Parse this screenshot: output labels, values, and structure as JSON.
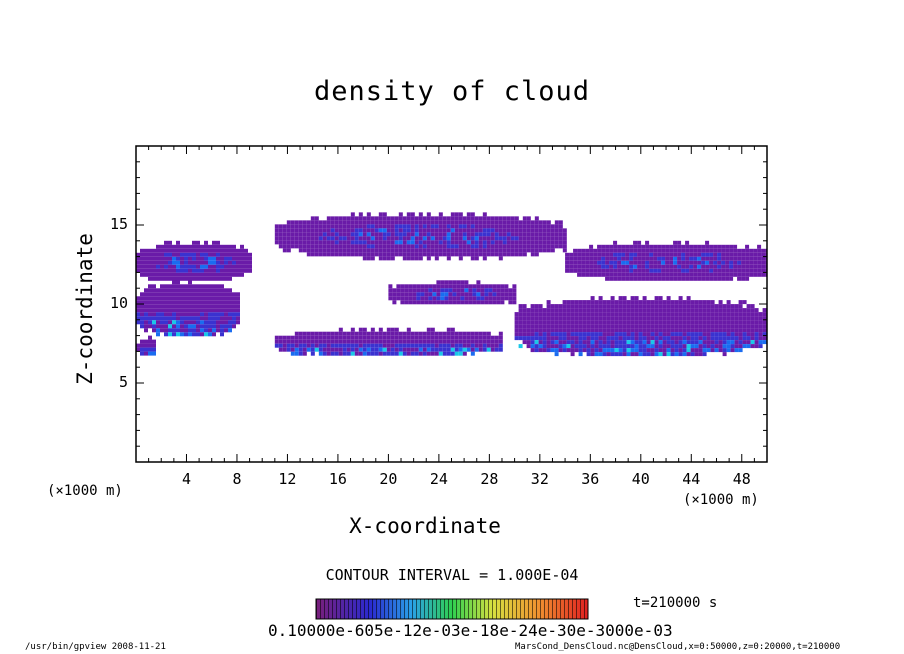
{
  "chart_data": {
    "type": "heatmap",
    "title": "density of cloud",
    "xlabel": "X-coordinate",
    "ylabel": "Z-coordinate",
    "x_unit_left": "(×1000 m)",
    "x_unit_right": "(×1000 m)",
    "xlim": [
      0,
      50
    ],
    "ylim": [
      0,
      20
    ],
    "x_ticks": [
      "4",
      "8",
      "12",
      "16",
      "20",
      "24",
      "28",
      "32",
      "36",
      "40",
      "44",
      "48"
    ],
    "y_ticks": [
      "5",
      "10",
      "15"
    ],
    "contour_interval": "CONTOUR INTERVAL = 1.000E-04",
    "time_label": "t=210000 s",
    "colorbar_labels": "0.10000e-605e-12e-03e-18e-24e-30e-3000e-03",
    "colors": {
      "cloud_main": "#6a1ba8",
      "cloud_dense": "#3a32d0",
      "cloud_core": "#1a6cf0",
      "cloud_peak": "#19c8e8"
    },
    "cloud_regions": [
      {
        "name": "left-upper",
        "x": [
          0,
          9
        ],
        "z": [
          11.5,
          14
        ]
      },
      {
        "name": "left-mid",
        "x": [
          0,
          8
        ],
        "z": [
          8,
          11.5
        ]
      },
      {
        "name": "left-base",
        "x": [
          0,
          1.5
        ],
        "z": [
          6.8,
          8
        ]
      },
      {
        "name": "upper-band",
        "x": [
          11,
          34
        ],
        "z": [
          13,
          15.8
        ]
      },
      {
        "name": "right-upper",
        "x": [
          34,
          50
        ],
        "z": [
          11.5,
          14
        ]
      },
      {
        "name": "mid-band",
        "x": [
          20,
          30
        ],
        "z": [
          10,
          11.5
        ]
      },
      {
        "name": "lower-band",
        "x": [
          11,
          29
        ],
        "z": [
          6.8,
          8.5
        ]
      },
      {
        "name": "right-lower",
        "x": [
          30,
          50
        ],
        "z": [
          6.8,
          10.5
        ]
      }
    ]
  },
  "labels": {
    "contour_interval": "CONTOUR INTERVAL = 1.000E-04",
    "time": "t=210000 s",
    "colorbar": "0.10000e-605e-12e-03e-18e-24e-30e-3000e-03"
  },
  "footer": {
    "left": "/usr/bin/gpview   2008-11-21",
    "right": "MarsCond_DensCloud.nc@DensCloud,x=0:50000,z=0:20000,t=210000"
  }
}
